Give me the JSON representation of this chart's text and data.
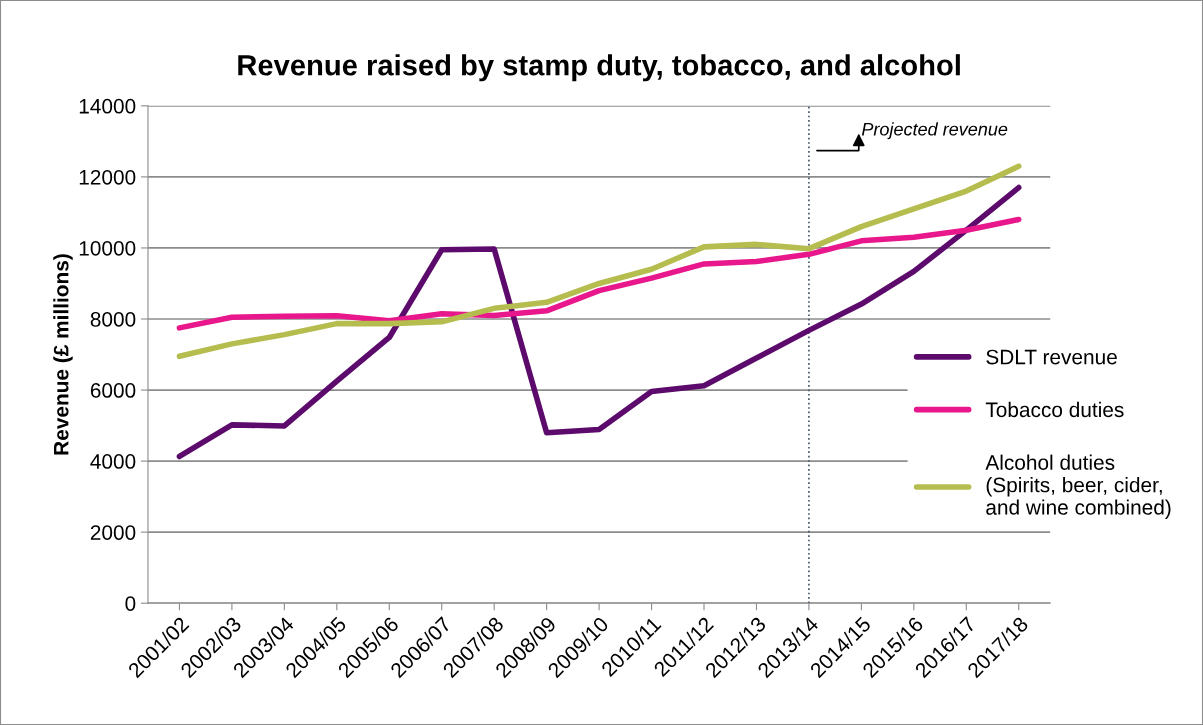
{
  "chart_data": {
    "type": "line",
    "title": "Revenue raised by stamp duty, tobacco, and alcohol",
    "ylabel": "Revenue (£ millions)",
    "categories": [
      "2001/02",
      "2002/03",
      "2003/04",
      "2004/05",
      "2005/06",
      "2006/07",
      "2007/08",
      "2008/09",
      "2009/10",
      "2010/11",
      "2011/12",
      "2012/13",
      "2013/14",
      "2014/15",
      "2015/16",
      "2016/17",
      "2017/18"
    ],
    "series": [
      {
        "name": "SDLT revenue",
        "color": "#5c0a6b",
        "values": [
          4130,
          5020,
          4990,
          6250,
          7480,
          9950,
          9970,
          4800,
          4890,
          5960,
          6120,
          6900,
          7680,
          8420,
          9340,
          10500,
          11700
        ]
      },
      {
        "name": "Tobacco duties",
        "color": "#e8178b",
        "values": [
          7750,
          8050,
          8080,
          8090,
          7950,
          8150,
          8100,
          8230,
          8800,
          9150,
          9550,
          9620,
          9820,
          10200,
          10300,
          10500,
          10800
        ]
      },
      {
        "name": "Alcohol duties\n(Spirits, beer, cider,\nand wine combined)",
        "color": "#b5bd4f",
        "values": [
          6950,
          7300,
          7560,
          7870,
          7870,
          7920,
          8300,
          8470,
          9000,
          9400,
          10030,
          10100,
          9980,
          10600,
          11100,
          11600,
          12300
        ]
      }
    ],
    "ylim": [
      0,
      14000
    ],
    "yticks": [
      0,
      2000,
      4000,
      6000,
      8000,
      10000,
      12000,
      14000
    ],
    "grid": "y",
    "legend": "right",
    "marker": "none",
    "line_style": "solid",
    "ref_lines": [
      {
        "axis": "x",
        "value": "2013/14",
        "color": "#44546a",
        "line_style": "dotted"
      }
    ],
    "annotations": [
      "Projected revenue"
    ]
  }
}
